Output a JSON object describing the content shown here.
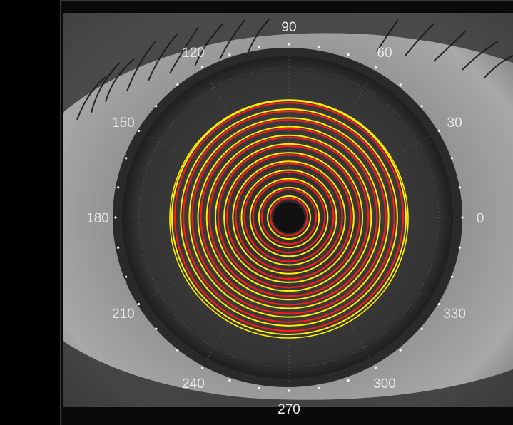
{
  "viewer": {
    "angle_labels": [
      {
        "deg": 0,
        "text": "0"
      },
      {
        "deg": 30,
        "text": "30"
      },
      {
        "deg": 60,
        "text": "60"
      },
      {
        "deg": 90,
        "text": "90"
      },
      {
        "deg": 120,
        "text": "120"
      },
      {
        "deg": 150,
        "text": "150"
      },
      {
        "deg": 180,
        "text": "180"
      },
      {
        "deg": 210,
        "text": "210"
      },
      {
        "deg": 240,
        "text": "240"
      },
      {
        "deg": 270,
        "text": "270"
      },
      {
        "deg": 300,
        "text": "300"
      },
      {
        "deg": 330,
        "text": "330"
      }
    ],
    "ring_count": 12,
    "colors": {
      "ring_primary": "#ff1a1a",
      "ring_secondary": "#ffee00",
      "label": "#e8e8e8",
      "dot": "#ffffff",
      "grid": "#8a8a8a"
    }
  }
}
